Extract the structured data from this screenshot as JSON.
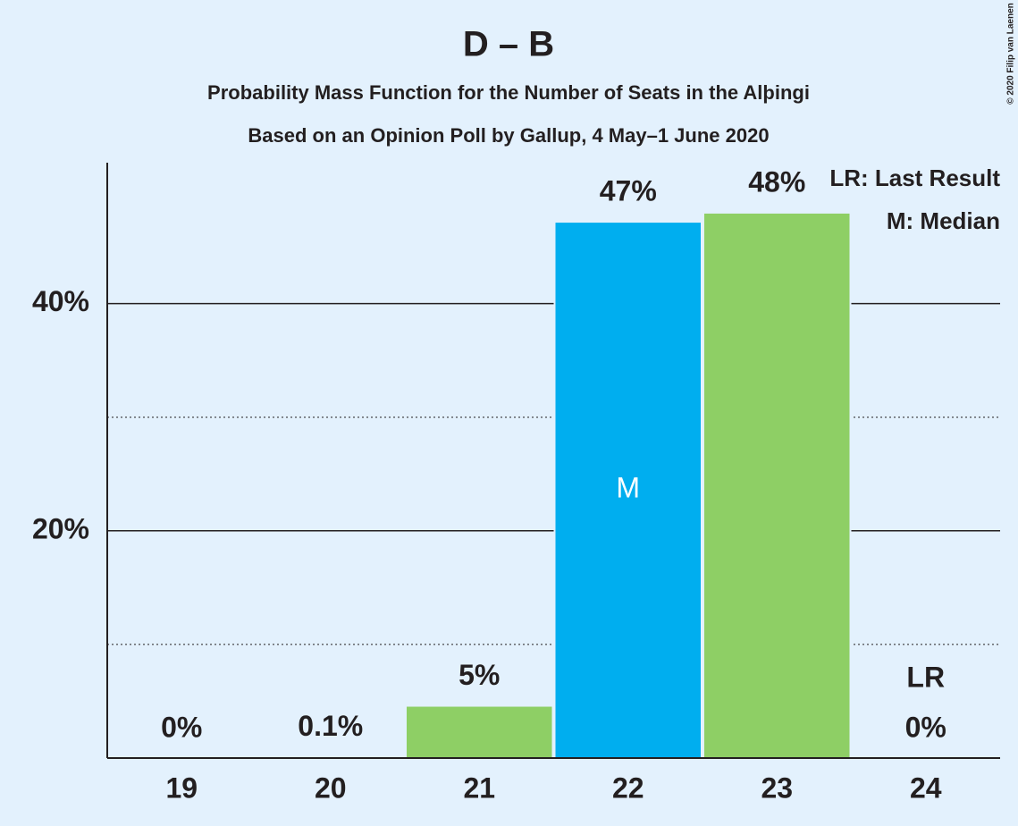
{
  "chart_data": {
    "type": "bar",
    "title": "D – B",
    "subtitle": "Probability Mass Function for the Number of Seats in the Alþingi",
    "subtitle2": "Based on an Opinion Poll by Gallup, 4 May–1 June 2020",
    "copyright": "© 2020 Filip van Laenen",
    "categories": [
      "19",
      "20",
      "21",
      "22",
      "23",
      "24"
    ],
    "values": [
      0,
      0.1,
      4.6,
      47.2,
      48.0,
      0
    ],
    "value_labels": [
      "0%",
      "0.1%",
      "5%",
      "47%",
      "48%",
      "0%"
    ],
    "colors": [
      "#8ecf65",
      "#8ecf65",
      "#8ecf65",
      "#00aeef",
      "#8ecf65",
      "#8ecf65"
    ],
    "ylim": [
      0,
      52.4
    ],
    "yticks": [
      {
        "value": 20,
        "label": "20%"
      },
      {
        "value": 40,
        "label": "40%"
      }
    ],
    "minor_grid": [
      10,
      30
    ],
    "grid": true,
    "legend": [
      "LR: Last Result",
      "M: Median"
    ],
    "annotations": [
      {
        "text": "M",
        "at": "22"
      },
      {
        "text": "LR",
        "at": "24"
      }
    ]
  }
}
